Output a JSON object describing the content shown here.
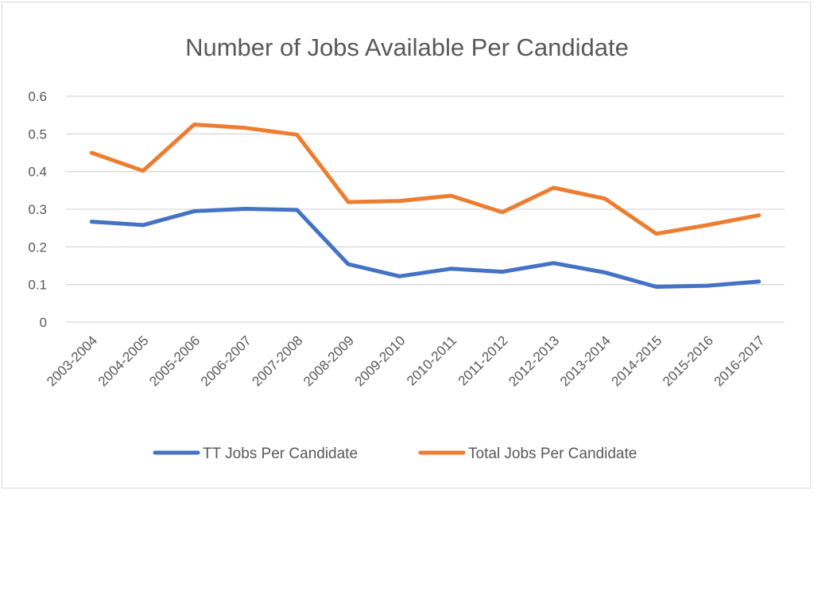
{
  "chart_data": {
    "type": "line",
    "title": "Number of Jobs Available Per Candidate",
    "xlabel": "",
    "ylabel": "",
    "categories": [
      "2003-2004",
      "2004-2005",
      "2005-2006",
      "2006-2007",
      "2007-2008",
      "2008-2009",
      "2009-2010",
      "2010-2011",
      "2011-2012",
      "2012-2013",
      "2013-2014",
      "2014-2015",
      "2015-2016",
      "2016-2017"
    ],
    "yticks": [
      "0",
      "0.1",
      "0.2",
      "0.3",
      "0.4",
      "0.5",
      "0.6"
    ],
    "ylim": [
      0,
      0.6
    ],
    "grid": true,
    "legend_position": "bottom",
    "series": [
      {
        "name": "TT Jobs Per Candidate",
        "color": "#4472C4",
        "values": [
          0.267,
          0.258,
          0.295,
          0.301,
          0.298,
          0.154,
          0.122,
          0.142,
          0.134,
          0.157,
          0.132,
          0.094,
          0.097,
          0.108
        ]
      },
      {
        "name": "Total Jobs Per Candidate",
        "color": "#ED7D31",
        "values": [
          0.45,
          0.402,
          0.525,
          0.516,
          0.498,
          0.319,
          0.322,
          0.336,
          0.292,
          0.357,
          0.328,
          0.235,
          0.258,
          0.284
        ]
      }
    ]
  }
}
